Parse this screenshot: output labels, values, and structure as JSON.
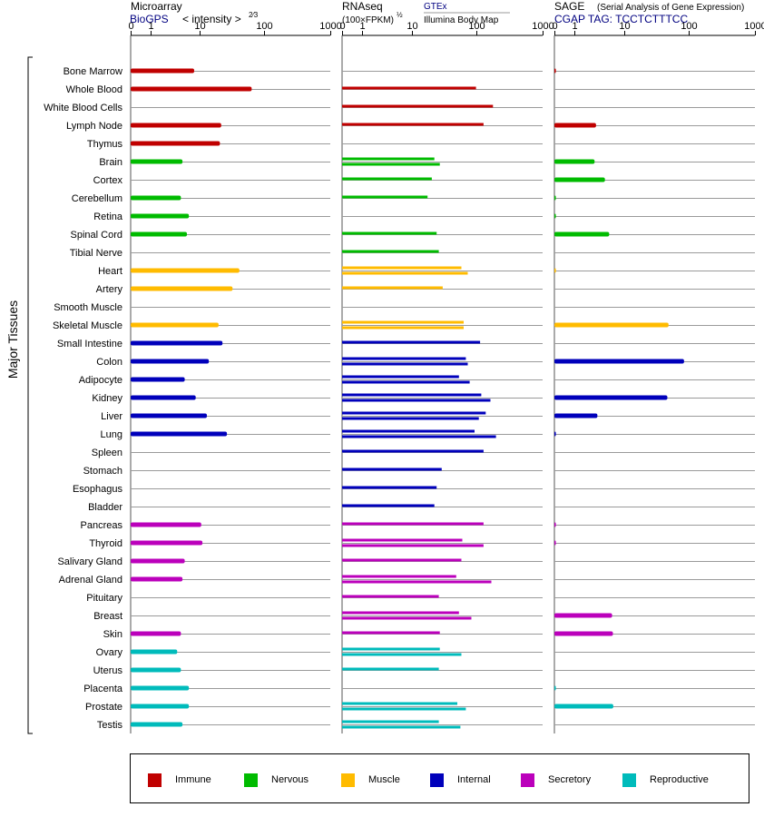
{
  "panels": {
    "microarray": {
      "title": "Microarray",
      "source": "BioGPS",
      "unit_prefix": "< intensity >",
      "unit_exp": "2⁄3"
    },
    "rnaseq": {
      "title": "RNAseq",
      "unit": "(100×FPKM)",
      "unit_exp": "½",
      "source": "GTEx",
      "source2": "Illumina Body Map"
    },
    "sage": {
      "title": "SAGE",
      "subtitle": "(Serial Analysis of Gene Expression)",
      "tag_line": "CGAP TAG: TCCTCTTTCC"
    }
  },
  "axis_tick_labels": [
    "0",
    "1",
    "10",
    "100",
    "1000"
  ],
  "side_label": "Major Tissues",
  "colors": {
    "Immune": "#c00000",
    "Nervous": "#00bb00",
    "Muscle": "#ffbb00",
    "Internal": "#0000bb",
    "Secretory": "#bb00bb",
    "Reproductive": "#00bbbb"
  },
  "legend": [
    {
      "label": "Immune",
      "color": "#c00000"
    },
    {
      "label": "Nervous",
      "color": "#00bb00"
    },
    {
      "label": "Muscle",
      "color": "#ffbb00"
    },
    {
      "label": "Internal",
      "color": "#0000bb"
    },
    {
      "label": "Secretory",
      "color": "#bb00bb"
    },
    {
      "label": "Reproductive",
      "color": "#00bbbb"
    }
  ],
  "chart_data": {
    "type": "bar",
    "orientation": "horizontal",
    "x_scale": "log (0, 1, 10, 100, 1000)",
    "xlim": [
      0,
      1000
    ],
    "categories": [
      "Bone Marrow",
      "Whole Blood",
      "White Blood Cells",
      "Lymph Node",
      "Thymus",
      "Brain",
      "Cortex",
      "Cerebellum",
      "Retina",
      "Spinal Cord",
      "Tibial Nerve",
      "Heart",
      "Artery",
      "Smooth Muscle",
      "Skeletal Muscle",
      "Small Intestine",
      "Colon",
      "Adipocyte",
      "Kidney",
      "Liver",
      "Lung",
      "Spleen",
      "Stomach",
      "Esophagus",
      "Bladder",
      "Pancreas",
      "Thyroid",
      "Salivary Gland",
      "Adrenal Gland",
      "Pituitary",
      "Breast",
      "Skin",
      "Ovary",
      "Uterus",
      "Placenta",
      "Prostate",
      "Testis"
    ],
    "groups": [
      "Immune",
      "Immune",
      "Immune",
      "Immune",
      "Immune",
      "Nervous",
      "Nervous",
      "Nervous",
      "Nervous",
      "Nervous",
      "Nervous",
      "Muscle",
      "Muscle",
      "Muscle",
      "Muscle",
      "Internal",
      "Internal",
      "Internal",
      "Internal",
      "Internal",
      "Internal",
      "Internal",
      "Internal",
      "Internal",
      "Internal",
      "Secretory",
      "Secretory",
      "Secretory",
      "Secretory",
      "Secretory",
      "Secretory",
      "Secretory",
      "Reproductive",
      "Reproductive",
      "Reproductive",
      "Reproductive",
      "Reproductive"
    ],
    "series": [
      {
        "name": "Microarray",
        "values": [
          [
            8
          ],
          [
            65
          ],
          [
            null
          ],
          [
            22
          ],
          [
            21
          ],
          [
            5
          ],
          [
            null
          ],
          [
            4.7
          ],
          [
            6.5
          ],
          [
            6
          ],
          [
            null
          ],
          [
            42
          ],
          [
            33
          ],
          [
            null
          ],
          [
            20
          ],
          [
            23
          ],
          [
            14
          ],
          [
            5.5
          ],
          [
            8.5
          ],
          [
            13
          ],
          [
            27
          ],
          [
            null
          ],
          [
            null
          ],
          [
            null
          ],
          [
            null
          ],
          [
            10.5
          ],
          [
            11
          ],
          [
            5.5
          ],
          [
            5
          ],
          [
            null
          ],
          [
            null
          ],
          [
            4.7
          ],
          [
            4
          ],
          [
            4.7
          ],
          [
            6.5
          ],
          [
            6.5
          ],
          [
            5
          ]
        ]
      },
      {
        "name": "RNAseq",
        "values": [
          [
            null
          ],
          [
            100
          ],
          [
            180
          ],
          [
            130
          ],
          [
            null
          ],
          [
            23,
            28
          ],
          [
            21
          ],
          [
            18
          ],
          [
            null
          ],
          [
            25
          ],
          [
            27
          ],
          [
            60,
            75
          ],
          [
            31
          ],
          [
            null
          ],
          [
            65,
            65
          ],
          [
            115
          ],
          [
            70,
            75
          ],
          [
            55,
            80
          ],
          [
            120,
            165
          ],
          [
            140,
            110
          ],
          [
            95,
            200
          ],
          [
            130
          ],
          [
            30
          ],
          [
            25
          ],
          [
            23
          ],
          [
            130
          ],
          [
            62,
            130
          ],
          [
            60
          ],
          [
            50,
            170
          ],
          [
            27
          ],
          [
            55,
            85
          ],
          [
            28
          ],
          [
            28,
            60
          ],
          [
            27
          ],
          [
            null
          ],
          [
            52,
            70
          ],
          [
            27,
            58
          ]
        ]
      },
      {
        "name": "SAGE",
        "values": [
          [
            0.05
          ],
          [
            null
          ],
          [
            null
          ],
          [
            3.2
          ],
          [
            null
          ],
          [
            3
          ],
          [
            4.7
          ],
          [
            0.05
          ],
          [
            0.05
          ],
          [
            5.6
          ],
          [
            null
          ],
          [
            0.05
          ],
          [
            null
          ],
          [
            null
          ],
          [
            50
          ],
          [
            null
          ],
          [
            86
          ],
          [
            null
          ],
          [
            48
          ],
          [
            3.4
          ],
          [
            0.05
          ],
          [
            null
          ],
          [
            null
          ],
          [
            null
          ],
          [
            null
          ],
          [
            0.05
          ],
          [
            0.05
          ],
          [
            null
          ],
          [
            null
          ],
          [
            null
          ],
          [
            6.3
          ],
          [
            6.5
          ],
          [
            null
          ],
          [
            null
          ],
          [
            0.05
          ],
          [
            6.6
          ],
          [
            null
          ]
        ]
      }
    ]
  }
}
